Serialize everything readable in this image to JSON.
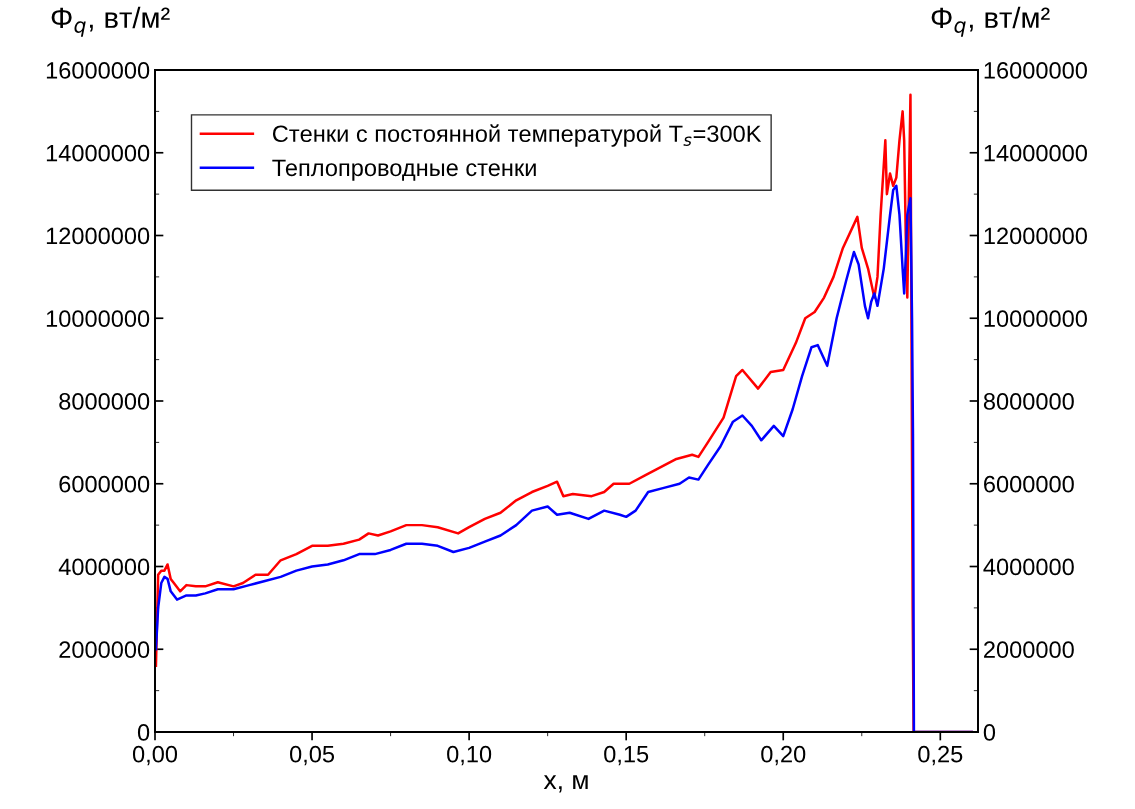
{
  "chart_data": {
    "type": "line",
    "xlabel": "x, м",
    "ylabel": "Φ$_{q}$, вт/м²",
    "y2label": "Φ$_{q}$, вт/м²",
    "xlim": [
      0,
      0.262
    ],
    "xticks": [
      {
        "value": 0,
        "label": "0,00"
      },
      {
        "value": 0.05,
        "label": "0,05"
      },
      {
        "value": 0.1,
        "label": "0,10"
      },
      {
        "value": 0.15,
        "label": "0,15"
      },
      {
        "value": 0.2,
        "label": "0,20"
      },
      {
        "value": 0.25,
        "label": "0,25"
      }
    ],
    "ylim": [
      0,
      16000000
    ],
    "yticks": [
      0,
      2000000,
      4000000,
      6000000,
      8000000,
      10000000,
      12000000,
      14000000,
      16000000
    ],
    "y2lim": [
      0,
      16000000
    ],
    "y2ticks": [
      0,
      2000000,
      4000000,
      6000000,
      8000000,
      10000000,
      12000000,
      14000000,
      16000000
    ],
    "grid": false,
    "legend": "top left",
    "line_style": "solid",
    "marker": "none",
    "series": [
      {
        "name": "Стенки с постоянной температурой T$_{s}$=300K",
        "color": "#ff0000",
        "x": [
          0.0003,
          0.001,
          0.002,
          0.003,
          0.004,
          0.005,
          0.006,
          0.008,
          0.01,
          0.013,
          0.016,
          0.02,
          0.025,
          0.028,
          0.032,
          0.036,
          0.04,
          0.045,
          0.05,
          0.055,
          0.06,
          0.065,
          0.068,
          0.071,
          0.075,
          0.08,
          0.085,
          0.09,
          0.0965,
          0.1,
          0.105,
          0.11,
          0.115,
          0.12,
          0.125,
          0.128,
          0.13,
          0.133,
          0.139,
          0.143,
          0.146,
          0.151,
          0.156,
          0.161,
          0.166,
          0.171,
          0.173,
          0.176,
          0.181,
          0.185,
          0.187,
          0.192,
          0.196,
          0.2,
          0.204,
          0.207,
          0.21,
          0.213,
          0.216,
          0.219,
          0.2236,
          0.225,
          0.227,
          0.229,
          0.23,
          0.231,
          0.2325,
          0.233,
          0.234,
          0.235,
          0.236,
          0.237,
          0.238,
          0.2385,
          0.239,
          0.2395,
          0.24,
          0.2405,
          0.2412,
          0.2415,
          0.26
        ],
        "values": [
          1600000,
          3800000,
          3900000,
          3900000,
          4050000,
          3700000,
          3600000,
          3400000,
          3550000,
          3520000,
          3520000,
          3620000,
          3520000,
          3600000,
          3800000,
          3800000,
          4150000,
          4300000,
          4500000,
          4500000,
          4550000,
          4650000,
          4800000,
          4750000,
          4850000,
          5000000,
          5000000,
          4950000,
          4800000,
          4950000,
          5150000,
          5300000,
          5600000,
          5800000,
          5950000,
          6050000,
          5700000,
          5750000,
          5700000,
          5800000,
          6000000,
          6000000,
          6200000,
          6400000,
          6600000,
          6700000,
          6650000,
          7000000,
          7600000,
          8600000,
          8750000,
          8300000,
          8700000,
          8750000,
          9400000,
          10000000,
          10150000,
          10500000,
          11000000,
          11700000,
          12450000,
          11700000,
          11200000,
          10500000,
          11000000,
          12500000,
          14300000,
          13000000,
          13500000,
          13200000,
          13400000,
          14300000,
          15000000,
          14300000,
          12000000,
          10500000,
          13000000,
          15400000,
          3000000,
          0,
          0
        ]
      },
      {
        "name": "Теплопроводные стенки",
        "color": "#0000ff",
        "x": [
          0.0003,
          0.001,
          0.002,
          0.003,
          0.004,
          0.005,
          0.007,
          0.01,
          0.013,
          0.016,
          0.02,
          0.025,
          0.03,
          0.035,
          0.04,
          0.045,
          0.05,
          0.055,
          0.06,
          0.065,
          0.07,
          0.075,
          0.08,
          0.085,
          0.09,
          0.095,
          0.1,
          0.105,
          0.11,
          0.115,
          0.12,
          0.125,
          0.128,
          0.132,
          0.138,
          0.143,
          0.148,
          0.15,
          0.153,
          0.157,
          0.162,
          0.167,
          0.17,
          0.173,
          0.176,
          0.18,
          0.184,
          0.187,
          0.19,
          0.193,
          0.197,
          0.2,
          0.203,
          0.206,
          0.209,
          0.211,
          0.214,
          0.217,
          0.22,
          0.2225,
          0.224,
          0.226,
          0.227,
          0.228,
          0.229,
          0.23,
          0.232,
          0.234,
          0.235,
          0.236,
          0.237,
          0.238,
          0.2385,
          0.239,
          0.2395,
          0.2405,
          0.241,
          0.2413,
          0.2416,
          0.26
        ],
        "values": [
          2000000,
          3000000,
          3600000,
          3750000,
          3700000,
          3400000,
          3200000,
          3300000,
          3300000,
          3350000,
          3450000,
          3450000,
          3550000,
          3650000,
          3750000,
          3900000,
          4000000,
          4050000,
          4150000,
          4300000,
          4300000,
          4400000,
          4550000,
          4550000,
          4500000,
          4350000,
          4450000,
          4600000,
          4750000,
          5000000,
          5350000,
          5450000,
          5250000,
          5300000,
          5150000,
          5350000,
          5250000,
          5200000,
          5350000,
          5800000,
          5900000,
          6000000,
          6150000,
          6100000,
          6450000,
          6900000,
          7500000,
          7650000,
          7400000,
          7050000,
          7400000,
          7150000,
          7800000,
          8600000,
          9300000,
          9350000,
          8850000,
          10000000,
          10900000,
          11600000,
          11300000,
          10300000,
          10000000,
          10400000,
          10600000,
          10300000,
          11200000,
          12500000,
          13100000,
          13200000,
          12500000,
          11200000,
          10600000,
          11500000,
          12500000,
          12900000,
          10000000,
          7200000,
          0,
          0
        ]
      }
    ]
  }
}
